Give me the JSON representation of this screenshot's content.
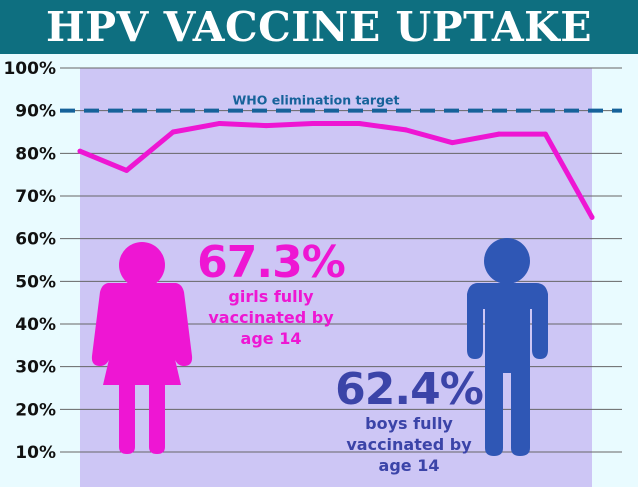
{
  "title": "HPV VACCINE UPTAKE",
  "colors": {
    "title_bar": "#0e6f80",
    "background": "#e9fbff",
    "plot_area": "#cdc6f5",
    "girls": "#ee16d3",
    "boys": "#2f57b5",
    "boys_text": "#3b44a8",
    "target": "#16629a",
    "grid": "#666666"
  },
  "stats": {
    "girls": {
      "value": "67.3%",
      "line1": "girls fully",
      "line2": "vaccinated by",
      "line3": "age 14"
    },
    "boys": {
      "value": "62.4%",
      "line1": "boys fully",
      "line2": "vaccinated by",
      "line3": "age 14"
    }
  },
  "icons": {
    "girls": "female-figure-icon",
    "boys": "male-figure-icon"
  },
  "chart_data": {
    "type": "line",
    "title": "HPV VACCINE UPTAKE",
    "xlabel": "",
    "ylabel": "",
    "ylim": [
      7,
      100
    ],
    "yticks": [
      10,
      20,
      30,
      40,
      50,
      60,
      70,
      80,
      90,
      100
    ],
    "ytick_labels": [
      "10%",
      "20%",
      "30%",
      "40%",
      "50%",
      "60%",
      "70%",
      "80%",
      "90%",
      "100%"
    ],
    "grid": true,
    "series": [
      {
        "values": [
          80.5,
          76,
          85,
          87,
          86.5,
          87,
          87,
          85.5,
          82.5,
          84.5,
          84.5,
          65
        ]
      }
    ],
    "reference_lines": [
      {
        "label": "WHO elimination target",
        "y": 90,
        "style": "dashed"
      }
    ]
  }
}
